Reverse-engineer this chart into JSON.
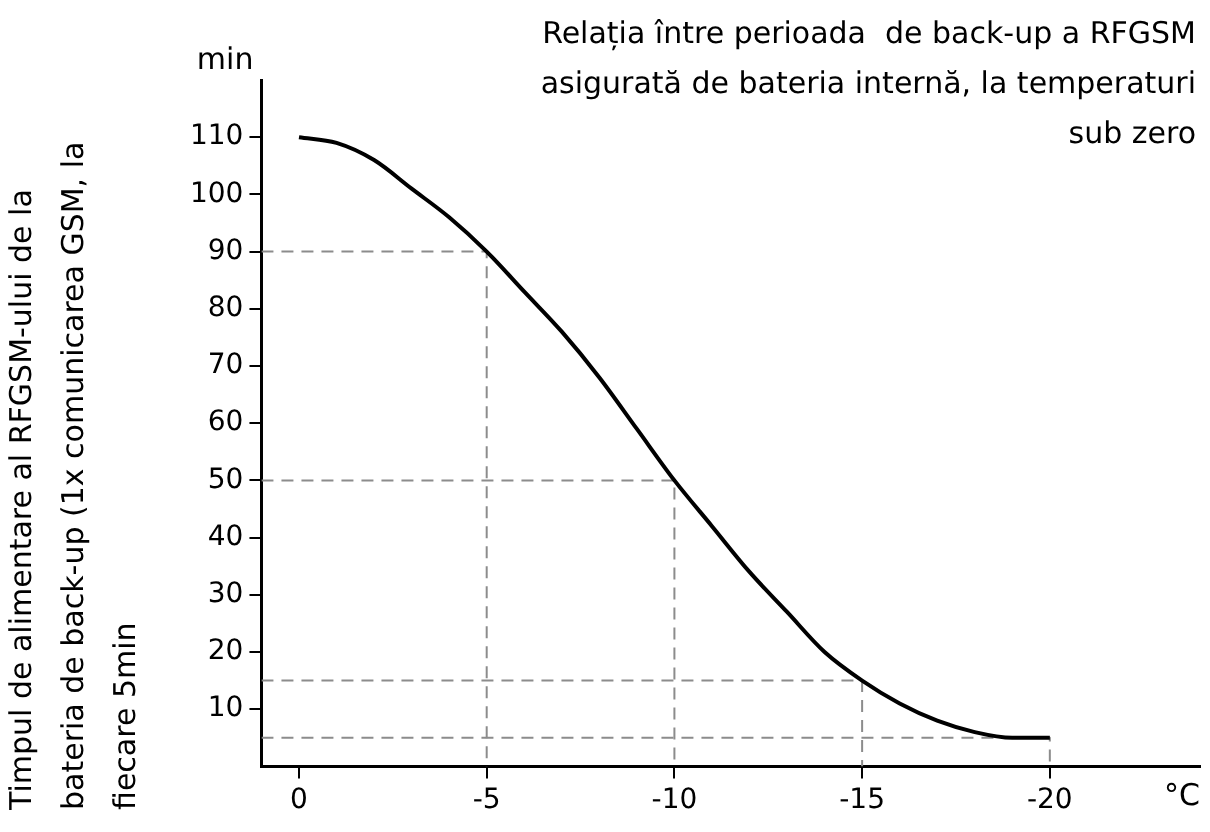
{
  "chart_data": {
    "type": "line",
    "title": "Relația între perioada  de back-up a RFGSM asigurată de bateria internă, la temperaturi sub zero",
    "xlabel": "°C",
    "ylabel": "Timpul de alimentare al RFGSM-ului de la bateria de back-up (1x comunicarea GSM, la fiecare 5min",
    "annotations": [
      "min"
    ],
    "series": [
      {
        "color": "#000000",
        "x": [
          0,
          -1,
          -2,
          -3,
          -4,
          -5,
          -6,
          -7,
          -8,
          -9,
          -10,
          -11,
          -12,
          -13,
          -14,
          -15,
          -16,
          -17,
          -18,
          -19,
          -20
        ],
        "values": [
          110,
          109,
          106,
          101,
          96,
          90,
          83,
          76,
          68,
          59,
          50,
          42,
          34,
          27,
          20,
          15,
          11,
          8,
          6,
          5,
          5
        ]
      },
      {
        "color": "#8c8c8c",
        "line_style": "dashed",
        "x": [
          1,
          -5,
          -5
        ],
        "values": [
          90,
          90,
          0
        ]
      },
      {
        "color": "#8c8c8c",
        "line_style": "dashed",
        "x": [
          1,
          -10,
          -10
        ],
        "values": [
          50,
          50,
          0
        ]
      },
      {
        "color": "#8c8c8c",
        "line_style": "dashed",
        "x": [
          1,
          -15,
          -15
        ],
        "values": [
          15,
          15,
          0
        ]
      },
      {
        "color": "#8c8c8c",
        "line_style": "dashed",
        "x": [
          1,
          -20,
          -20
        ],
        "values": [
          5,
          5,
          0
        ]
      }
    ],
    "xlim": [
      1,
      -24
    ],
    "xticks": [
      0,
      -5,
      -10,
      -15,
      -20
    ],
    "ylim": [
      0,
      120
    ],
    "yticks": [
      10,
      20,
      30,
      40,
      50,
      60,
      70,
      80,
      90,
      100,
      110
    ],
    "legend": false
  }
}
